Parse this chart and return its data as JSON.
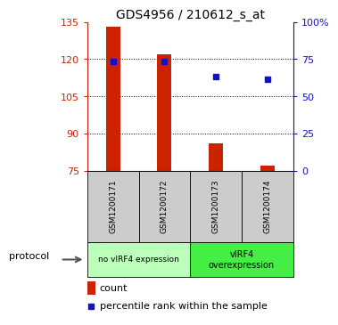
{
  "title": "GDS4956 / 210612_s_at",
  "samples": [
    "GSM1200171",
    "GSM1200172",
    "GSM1200173",
    "GSM1200174"
  ],
  "bar_values": [
    133,
    122,
    86,
    77
  ],
  "bar_baseline": 75,
  "percentile_values": [
    119,
    119,
    113,
    112
  ],
  "left_ylim": [
    75,
    135
  ],
  "left_yticks": [
    75,
    90,
    105,
    120,
    135
  ],
  "right_ylim": [
    0,
    100
  ],
  "right_yticks": [
    0,
    25,
    50,
    75,
    100
  ],
  "right_yticklabels": [
    "0",
    "25",
    "50",
    "75",
    "100%"
  ],
  "bar_color": "#cc2200",
  "percentile_color": "#1111cc",
  "protocol_groups": [
    {
      "label": "no vIRF4 expression",
      "color": "#bbffbb"
    },
    {
      "label": "vIRF4\noverexpression",
      "color": "#44ee44"
    }
  ],
  "sample_box_color": "#cccccc",
  "protocol_label": "protocol",
  "legend_count_label": "count",
  "legend_percentile_label": "percentile rank within the sample",
  "x_positions": [
    0.5,
    1.5,
    2.5,
    3.5
  ],
  "bar_width": 0.28
}
